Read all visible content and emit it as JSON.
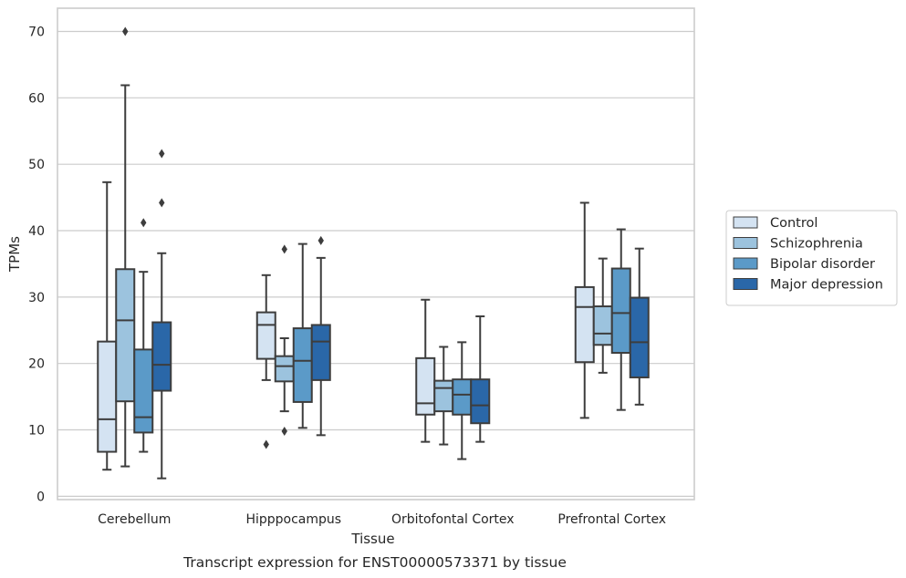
{
  "chart_data": {
    "type": "box",
    "xlabel": "Tissue",
    "ylabel": "TPMs",
    "caption": "Transcript expression for ENST00000573371 by tissue",
    "ylim": [
      -0.5,
      73.5
    ],
    "yticks": [
      0,
      10,
      20,
      30,
      40,
      50,
      60,
      70
    ],
    "grid": "horizontal",
    "legend_position": "right",
    "categories": [
      "Cerebellum",
      "Hipppocampus",
      "Orbitofontal Cortex",
      "Prefrontal Cortex"
    ],
    "series": [
      {
        "name": "Control",
        "color": "#d4e3f2",
        "boxes": [
          {
            "whislo": 4.0,
            "q1": 6.7,
            "med": 11.6,
            "q3": 23.3,
            "whishi": 47.3,
            "fliers": []
          },
          {
            "whislo": 17.5,
            "q1": 20.7,
            "med": 25.8,
            "q3": 27.7,
            "whishi": 33.3,
            "fliers": [
              7.8
            ]
          },
          {
            "whislo": 8.2,
            "q1": 12.3,
            "med": 14.0,
            "q3": 20.8,
            "whishi": 29.6,
            "fliers": []
          },
          {
            "whislo": 11.8,
            "q1": 20.2,
            "med": 28.5,
            "q3": 31.5,
            "whishi": 44.2,
            "fliers": []
          }
        ]
      },
      {
        "name": "Schizophrenia",
        "color": "#9cc3de",
        "boxes": [
          {
            "whislo": 4.5,
            "q1": 14.3,
            "med": 26.5,
            "q3": 34.2,
            "whishi": 61.9,
            "fliers": [
              70.0
            ]
          },
          {
            "whislo": 12.8,
            "q1": 17.3,
            "med": 19.6,
            "q3": 21.1,
            "whishi": 23.8,
            "fliers": [
              9.8,
              37.2
            ]
          },
          {
            "whislo": 7.8,
            "q1": 12.8,
            "med": 16.3,
            "q3": 17.4,
            "whishi": 22.5,
            "fliers": []
          },
          {
            "whislo": 18.6,
            "q1": 22.8,
            "med": 24.5,
            "q3": 28.6,
            "whishi": 35.8,
            "fliers": []
          }
        ]
      },
      {
        "name": "Bipolar disorder",
        "color": "#5b9ac8",
        "boxes": [
          {
            "whislo": 6.7,
            "q1": 9.6,
            "med": 11.9,
            "q3": 22.1,
            "whishi": 33.8,
            "fliers": [
              41.2
            ]
          },
          {
            "whislo": 10.3,
            "q1": 14.2,
            "med": 20.4,
            "q3": 25.3,
            "whishi": 38.0,
            "fliers": []
          },
          {
            "whislo": 5.6,
            "q1": 12.3,
            "med": 15.3,
            "q3": 17.6,
            "whishi": 23.2,
            "fliers": []
          },
          {
            "whislo": 13.0,
            "q1": 21.6,
            "med": 27.6,
            "q3": 34.3,
            "whishi": 40.2,
            "fliers": []
          }
        ]
      },
      {
        "name": "Major depression",
        "color": "#2a67a8",
        "boxes": [
          {
            "whislo": 2.7,
            "q1": 15.9,
            "med": 19.8,
            "q3": 26.2,
            "whishi": 36.6,
            "fliers": [
              44.2,
              51.6
            ]
          },
          {
            "whislo": 9.2,
            "q1": 17.5,
            "med": 23.3,
            "q3": 25.8,
            "whishi": 35.9,
            "fliers": [
              38.5
            ]
          },
          {
            "whislo": 8.2,
            "q1": 11.0,
            "med": 13.7,
            "q3": 17.6,
            "whishi": 27.1,
            "fliers": []
          },
          {
            "whislo": 13.8,
            "q1": 17.9,
            "med": 23.2,
            "q3": 29.9,
            "whishi": 37.3,
            "fliers": []
          }
        ]
      }
    ]
  }
}
